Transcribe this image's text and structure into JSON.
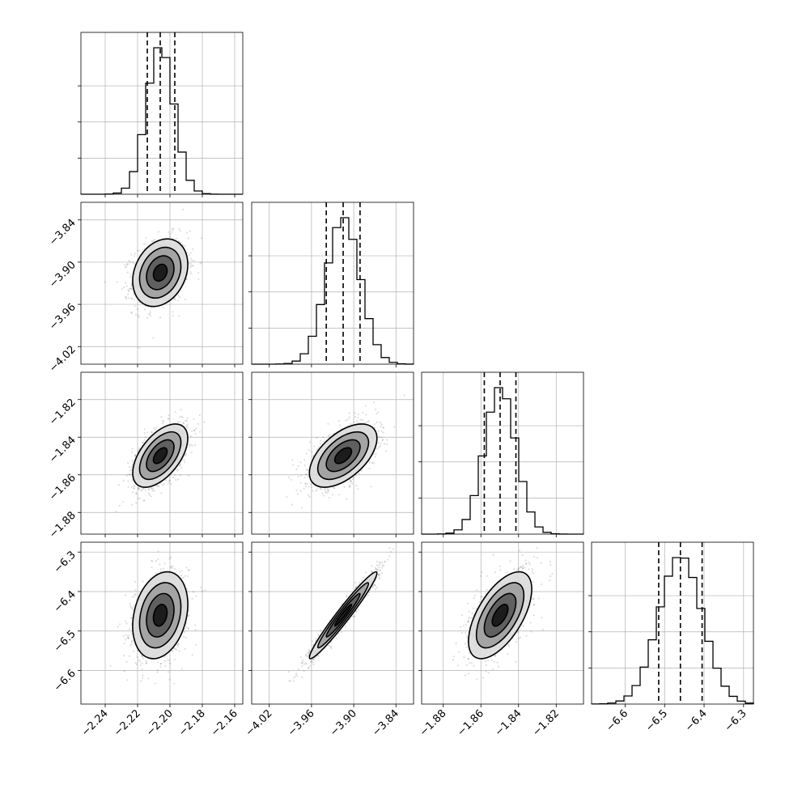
{
  "chart_data": {
    "type": "corner",
    "parameters": [
      {
        "center": -2.206,
        "lo": -2.214,
        "hi": -2.197,
        "range": [
          -2.255,
          -2.155
        ],
        "sigma": 0.0085,
        "ticks": [
          "−2.24",
          "−2.22",
          "−2.20",
          "−2.18",
          "−2.16"
        ],
        "tick_values": [
          -2.24,
          -2.22,
          -2.2,
          -2.18,
          -2.16
        ]
      },
      {
        "center": -3.915,
        "lo": -3.939,
        "hi": -3.891,
        "range": [
          -4.045,
          -3.815
        ],
        "sigma": 0.024,
        "ticks": [
          "−4.02",
          "−3.96",
          "−3.90",
          "−3.84"
        ],
        "tick_values": [
          -4.02,
          -3.96,
          -3.9,
          -3.84
        ]
      },
      {
        "center": -1.8498,
        "lo": -1.8582,
        "hi": -1.8414,
        "range": [
          -1.8915,
          -1.8055
        ],
        "sigma": 0.0084,
        "ticks": [
          "−1.88",
          "−1.86",
          "−1.84",
          "−1.82"
        ],
        "tick_values": [
          -1.88,
          -1.86,
          -1.84,
          -1.82
        ]
      },
      {
        "center": -6.46,
        "lo": -6.515,
        "hi": -6.405,
        "range": [
          -6.685,
          -6.275
        ],
        "sigma": 0.055,
        "ticks": [
          "−6.6",
          "−6.5",
          "−6.4",
          "−6.3"
        ],
        "tick_values": [
          -6.6,
          -6.5,
          -6.4,
          -6.3
        ]
      }
    ],
    "correlations": [
      {
        "i": 1,
        "j": 0,
        "rho": 0.25
      },
      {
        "i": 2,
        "j": 0,
        "rho": 0.55
      },
      {
        "i": 2,
        "j": 1,
        "rho": 0.55
      },
      {
        "i": 3,
        "j": 0,
        "rho": 0.25
      },
      {
        "i": 3,
        "j": 1,
        "rho": 0.97
      },
      {
        "i": 3,
        "j": 2,
        "rho": 0.6
      }
    ],
    "histogram_bins": 20,
    "quantile_lines": [
      0.16,
      0.5,
      0.84
    ],
    "contour_levels_sigma": [
      0.5,
      1.0,
      1.5,
      2.0
    ],
    "grid": true,
    "xlabel": "",
    "ylabel": "",
    "title": "",
    "colors": {
      "ink": "#000000",
      "grid": "#b0b0b0",
      "background": "#ffffff"
    }
  }
}
